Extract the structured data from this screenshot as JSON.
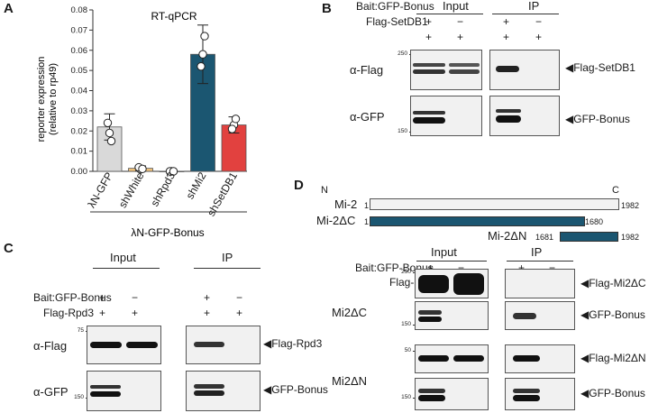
{
  "panels": {
    "A": "A",
    "B": "B",
    "C": "C",
    "D": "D"
  },
  "chart_data": {
    "type": "bar",
    "title": "RT-qPCR",
    "ylabel_line1": "reporter expression",
    "ylabel_line2": "(relative to rp49)",
    "categories": [
      "λN-GFP",
      "shWhite",
      "shRpd3",
      "shMi2",
      "shSetDB1"
    ],
    "values": [
      0.022,
      0.0015,
      0.0,
      0.058,
      0.023
    ],
    "errors": [
      0.0065,
      0.0012,
      0.0,
      0.0145,
      0.004
    ],
    "points": [
      [
        0.019,
        0.024,
        0.015
      ],
      [
        0.001,
        0.002,
        0.0012
      ],
      [
        0.0,
        0.0,
        0.0
      ],
      [
        0.058,
        0.052,
        0.067
      ],
      [
        0.023,
        0.021,
        0.026
      ]
    ],
    "colors": [
      "#d9d9d9",
      "#f0c27a",
      "#f2f2f2",
      "#1b5671",
      "#e2413f"
    ],
    "ylim": [
      0,
      0.08
    ],
    "yticks": [
      "0.00",
      "0.01",
      "0.02",
      "0.03",
      "0.04",
      "0.05",
      "0.06",
      "0.07",
      "0.08"
    ],
    "group_label": "λN-GFP-Bonus"
  },
  "panelB": {
    "row1_label": "Bait:GFP-Bonus",
    "row2_label": "Flag-SetDB1",
    "input": "Input",
    "ip": "IP",
    "signs1": [
      "+",
      "−",
      "+",
      "−"
    ],
    "signs2": [
      "+",
      "+",
      "+",
      "+"
    ],
    "blot1": "α-Flag",
    "blot2": "α-GFP",
    "arrow1": "◀Flag-SetDB1",
    "arrow2": "◀GFP-Bonus",
    "mw": [
      "250",
      "150"
    ]
  },
  "panelC": {
    "input": "Input",
    "ip": "IP",
    "row1_label": "Bait:GFP-Bonus",
    "row2_label": "Flag-Rpd3",
    "signs1": [
      "+",
      "−",
      "+",
      "−"
    ],
    "signs2": [
      "+",
      "+",
      "+",
      "+"
    ],
    "blot1": "α-Flag",
    "blot2": "α-GFP",
    "arrow1": "◀Flag-Rpd3",
    "arrow2": "◀GFP-Bonus",
    "mw": [
      "75",
      "150"
    ]
  },
  "panelD": {
    "n": "N",
    "c": "C",
    "mi2": "Mi-2",
    "mi2_start": "1",
    "mi2_end": "1982",
    "dc": "Mi-2ΔC",
    "dc_start": "1",
    "dc_end": "1680",
    "dn": "Mi-2ΔN",
    "dn_start": "1681",
    "dn_end": "1982",
    "input": "Input",
    "ip": "IP",
    "row1_label": "Bait:GFP-Bonus",
    "row2_label": "Flag-",
    "signs1": [
      "+",
      "−",
      "+",
      "−"
    ],
    "signs2": [
      "+",
      "+",
      "+",
      "+"
    ],
    "blot_dc": "Mi2ΔC",
    "blot_dn": "Mi2ΔN",
    "arrow1": "◀Flag-Mi2ΔC",
    "arrow2": "◀GFP-Bonus",
    "arrow3": "◀Flag-Mi2ΔN",
    "arrow4": "◀GFP-Bonus",
    "mw": [
      "250",
      "150",
      "50",
      "150"
    ]
  }
}
